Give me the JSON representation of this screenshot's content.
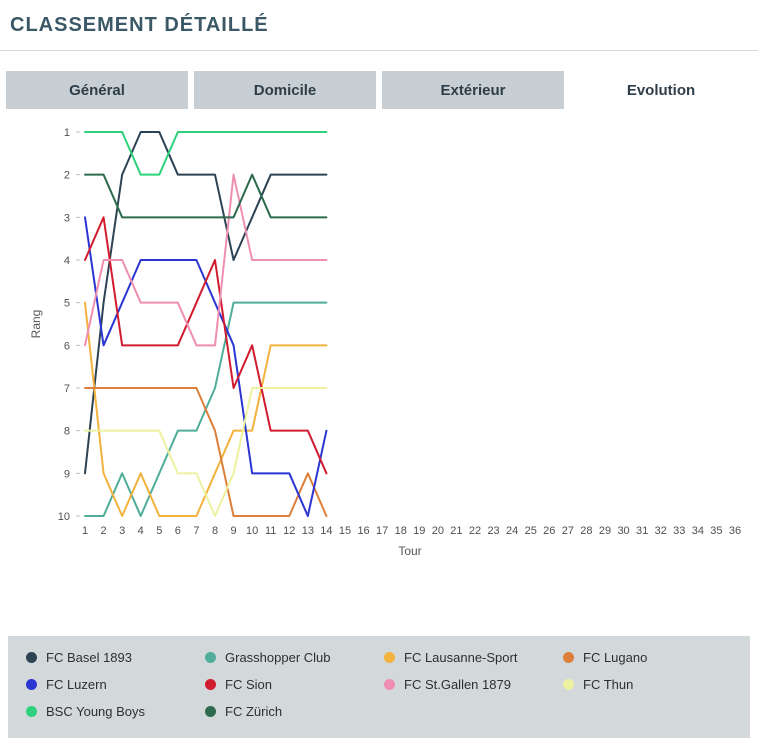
{
  "page": {
    "title": "CLASSEMENT DÉTAILLÉ"
  },
  "tabs": [
    {
      "label": "Général",
      "active": false
    },
    {
      "label": "Domicile",
      "active": false
    },
    {
      "label": "Extérieur",
      "active": false
    },
    {
      "label": "Evolution",
      "active": true
    }
  ],
  "chart_data": {
    "type": "line",
    "title": "",
    "xlabel": "Tour",
    "ylabel": "Rang",
    "xlim": [
      1,
      36
    ],
    "ylim": [
      1,
      10
    ],
    "y_inverted": true,
    "grid": false,
    "legend_position": "bottom",
    "x_ticks": [
      1,
      2,
      3,
      4,
      5,
      6,
      7,
      8,
      9,
      10,
      11,
      12,
      13,
      14,
      15,
      16,
      17,
      18,
      19,
      20,
      21,
      22,
      23,
      24,
      25,
      26,
      27,
      28,
      29,
      30,
      31,
      32,
      33,
      34,
      35,
      36
    ],
    "y_ticks": [
      1,
      2,
      3,
      4,
      5,
      6,
      7,
      8,
      9,
      10
    ],
    "x": [
      1,
      2,
      3,
      4,
      5,
      6,
      7,
      8,
      9,
      10,
      11,
      12,
      13,
      14
    ],
    "series": [
      {
        "name": "FC Basel 1893",
        "color": "#2d4354",
        "values": [
          9,
          5,
          2,
          1,
          1,
          2,
          2,
          2,
          4,
          3,
          2,
          2,
          2,
          2
        ]
      },
      {
        "name": "Grasshopper Club",
        "color": "#4fad99",
        "values": [
          10,
          10,
          9,
          10,
          9,
          8,
          8,
          7,
          5,
          5,
          5,
          5,
          5,
          5
        ]
      },
      {
        "name": "FC Lausanne-Sport",
        "color": "#f4b23e",
        "values": [
          5,
          9,
          10,
          9,
          10,
          10,
          10,
          9,
          8,
          8,
          6,
          6,
          6,
          6
        ]
      },
      {
        "name": "FC Lugano",
        "color": "#dd7f3b",
        "values": [
          7,
          7,
          7,
          7,
          7,
          7,
          7,
          8,
          10,
          10,
          10,
          10,
          9,
          10
        ]
      },
      {
        "name": "FC Luzern",
        "color": "#2a35d2",
        "values": [
          3,
          6,
          5,
          4,
          4,
          4,
          4,
          5,
          6,
          9,
          9,
          9,
          10,
          8
        ]
      },
      {
        "name": "FC Sion",
        "color": "#d01c2e",
        "values": [
          4,
          3,
          6,
          6,
          6,
          6,
          5,
          4,
          7,
          6,
          8,
          8,
          8,
          9
        ]
      },
      {
        "name": "FC St.Gallen 1879",
        "color": "#ee8fb2",
        "values": [
          6,
          4,
          4,
          5,
          5,
          5,
          6,
          6,
          2,
          4,
          4,
          4,
          4,
          4
        ]
      },
      {
        "name": "FC Thun",
        "color": "#edf2a0",
        "values": [
          8,
          8,
          8,
          8,
          8,
          9,
          9,
          10,
          9,
          7,
          7,
          7,
          7,
          7
        ]
      },
      {
        "name": "BSC Young Boys",
        "color": "#2fd27c",
        "values": [
          1,
          1,
          1,
          2,
          2,
          1,
          1,
          1,
          1,
          1,
          1,
          1,
          1,
          1
        ]
      },
      {
        "name": "FC Zürich",
        "color": "#2e6b4e",
        "values": [
          2,
          2,
          3,
          3,
          3,
          3,
          3,
          3,
          3,
          2,
          3,
          3,
          3,
          3
        ]
      }
    ]
  }
}
